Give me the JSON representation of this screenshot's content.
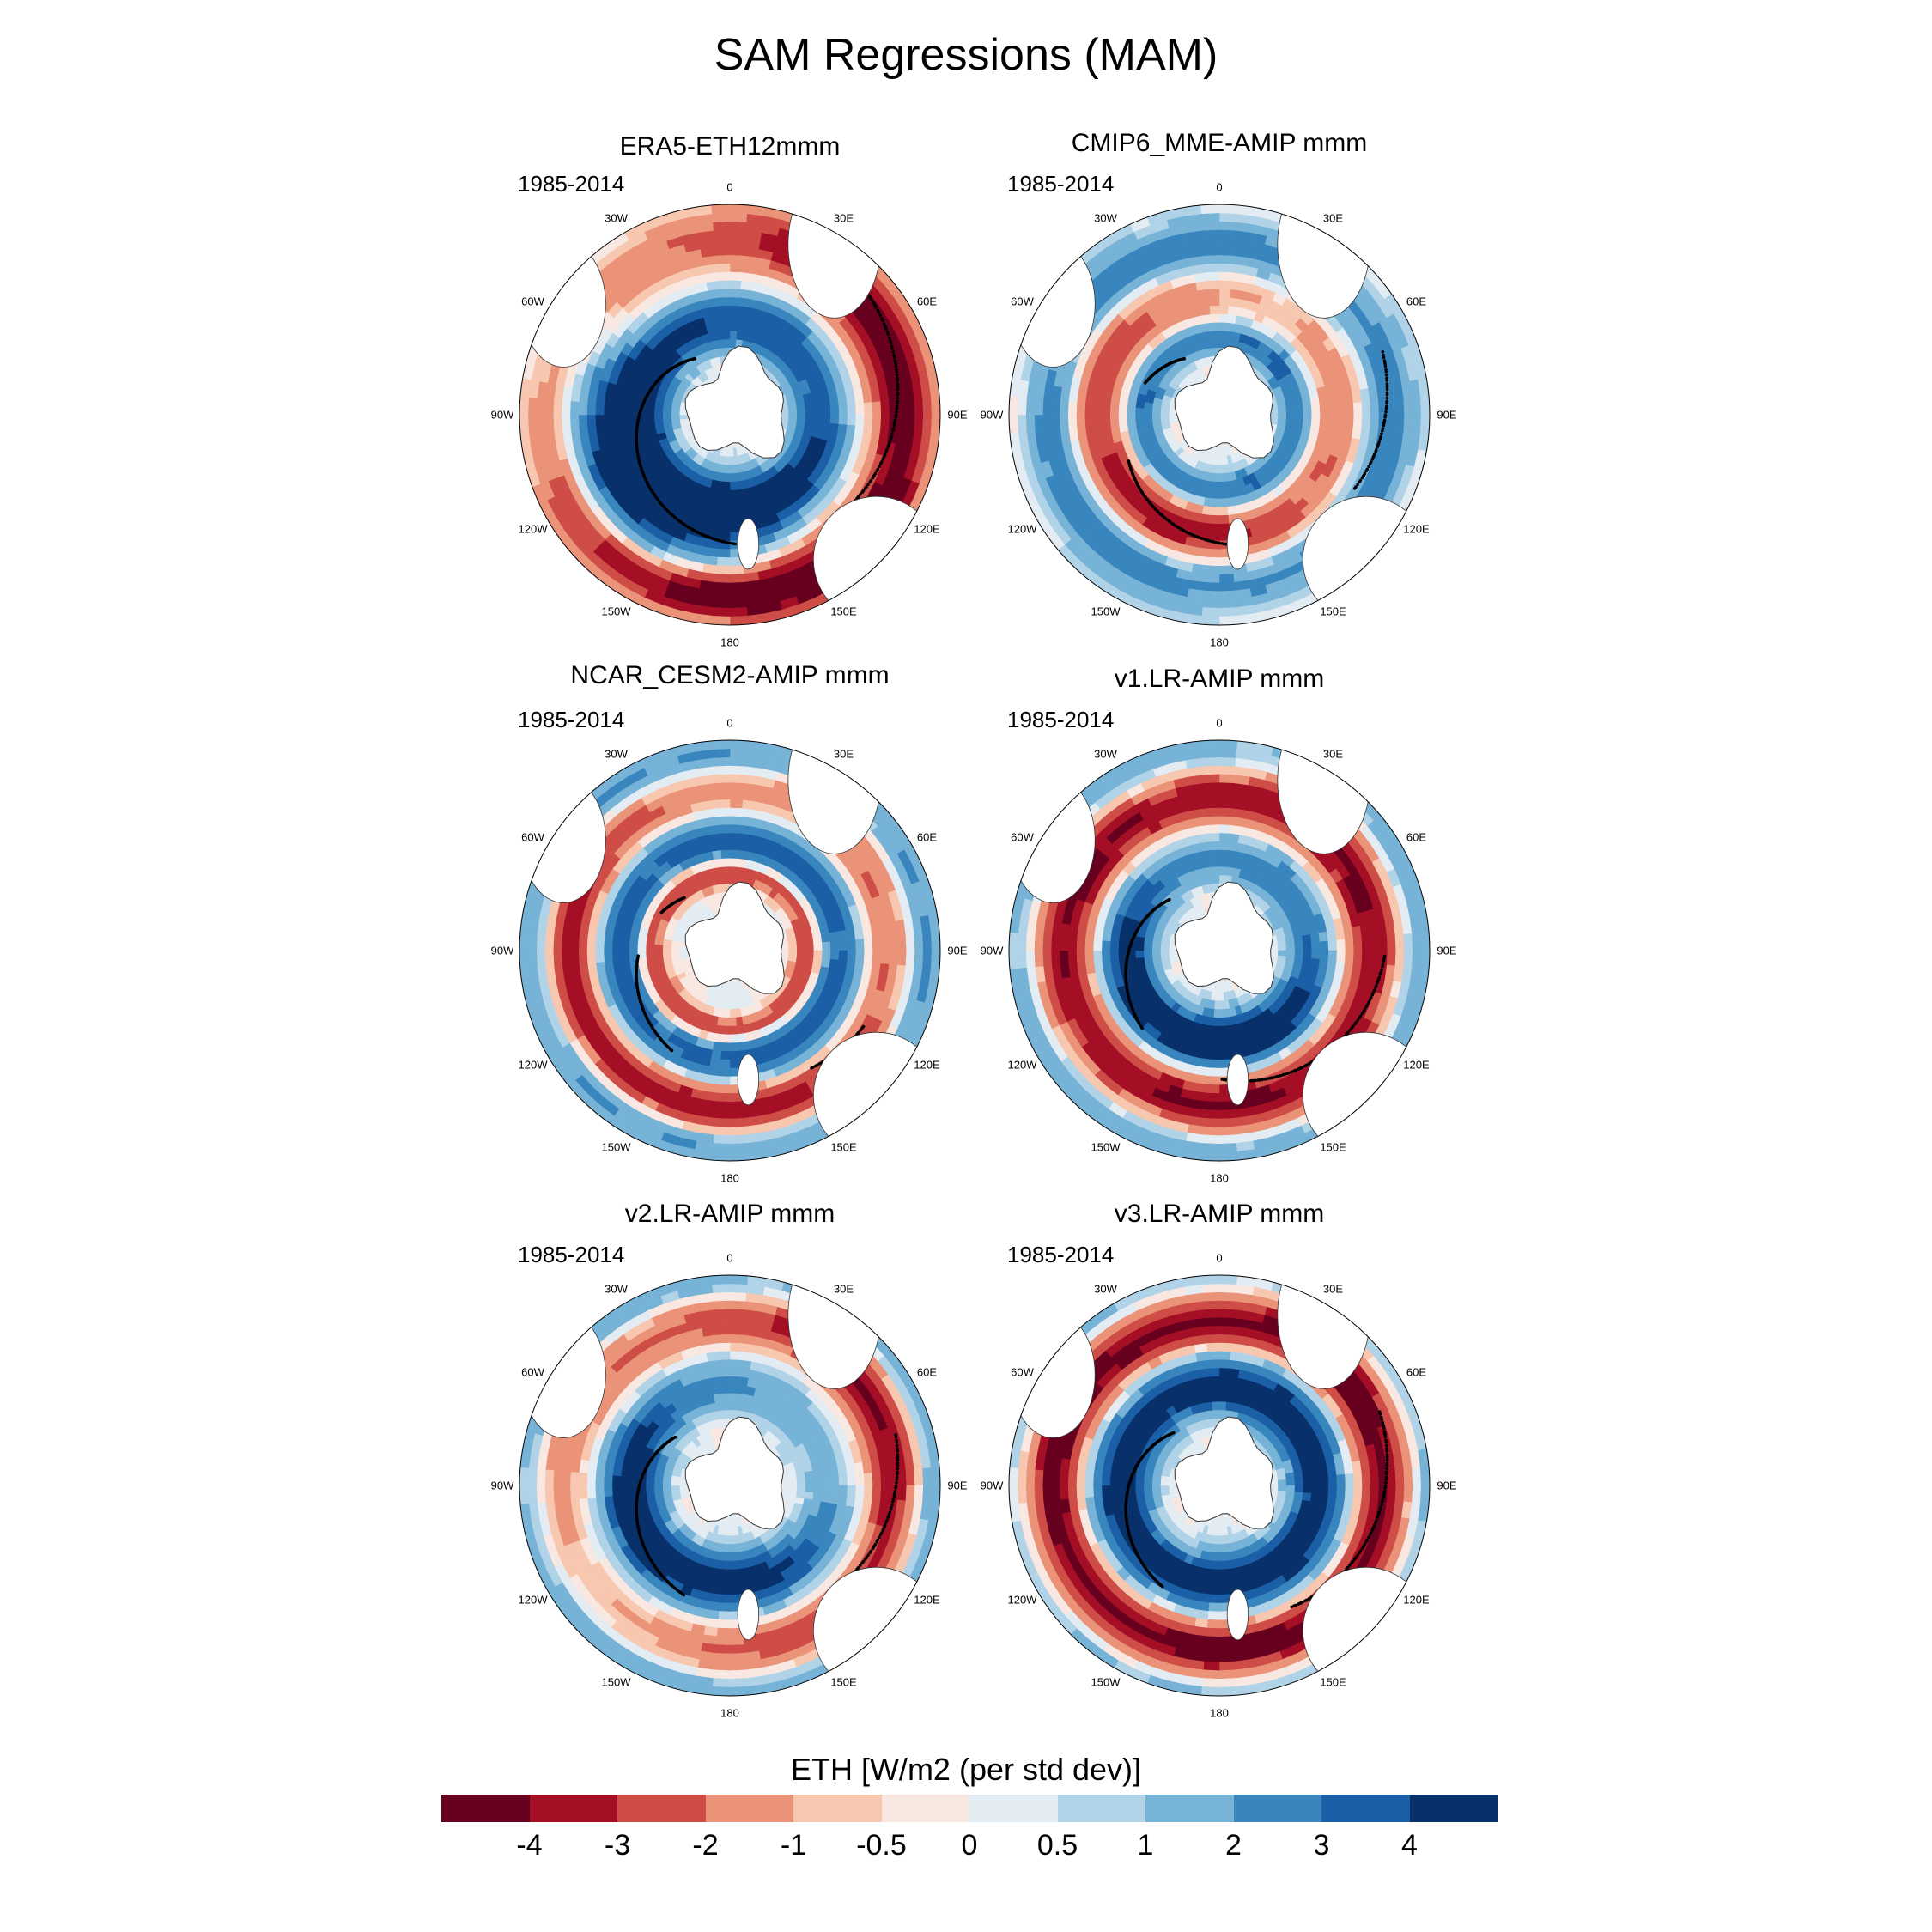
{
  "title": "SAM Regressions (MAM)",
  "panels": [
    {
      "name": "ERA5-ETH12mmm",
      "period": "1985-2014",
      "pattern": "era5"
    },
    {
      "name": "CMIP6_MME-AMIP  mmm",
      "period": "1985-2014",
      "pattern": "cmip6"
    },
    {
      "name": "NCAR_CESM2-AMIP  mmm",
      "period": "1985-2014",
      "pattern": "cesm2"
    },
    {
      "name": "v1.LR-AMIP  mmm",
      "period": "1985-2014",
      "pattern": "v1"
    },
    {
      "name": "v2.LR-AMIP  mmm",
      "period": "1985-2014",
      "pattern": "v2"
    },
    {
      "name": "v3.LR-AMIP  mmm",
      "period": "1985-2014",
      "pattern": "v3"
    }
  ],
  "longitude_labels": [
    "0",
    "30E",
    "60E",
    "90E",
    "120E",
    "150E",
    "180",
    "150W",
    "120W",
    "90W",
    "60W",
    "30W"
  ],
  "colorbar": {
    "title": "ETH [W/m2 (per std dev)]",
    "labels": [
      "-4",
      "-3",
      "-2",
      "-1",
      "-0.5",
      "0",
      "0.5",
      "1",
      "2",
      "3",
      "4"
    ],
    "colors": [
      "#67001f",
      "#a50f25",
      "#cf4d47",
      "#eb9378",
      "#f8c7b0",
      "#f8e8e1",
      "#e3ecf2",
      "#b0d3e7",
      "#76b3d7",
      "#3986bf",
      "#1b5fa6",
      "#08306b"
    ]
  },
  "chart_data": {
    "type": "heatmap",
    "title": "SAM Regressions (MAM)",
    "variable": "ETH [W/m2 (per std dev)]",
    "period": "1985-2014",
    "projection": "south polar stereographic",
    "levels": [
      -4,
      -3,
      -2,
      -1,
      -0.5,
      0,
      0.5,
      1,
      2,
      3,
      4
    ],
    "panels": [
      "ERA5-ETH12mmm",
      "CMIP6_MME-AMIP  mmm",
      "NCAR_CESM2-AMIP  mmm",
      "v1.LR-AMIP  mmm",
      "v2.LR-AMIP  mmm",
      "v3.LR-AMIP  mmm"
    ]
  }
}
